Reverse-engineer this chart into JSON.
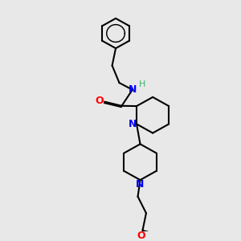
{
  "bg_color": "#e8e8e8",
  "bond_color": "#000000",
  "N_color": "#0000ff",
  "O_color": "#ff0000",
  "H_color": "#3cb371",
  "line_width": 1.5,
  "figsize": [
    3.0,
    3.0
  ],
  "dpi": 100,
  "xlim": [
    0,
    10
  ],
  "ylim": [
    0,
    10
  ]
}
